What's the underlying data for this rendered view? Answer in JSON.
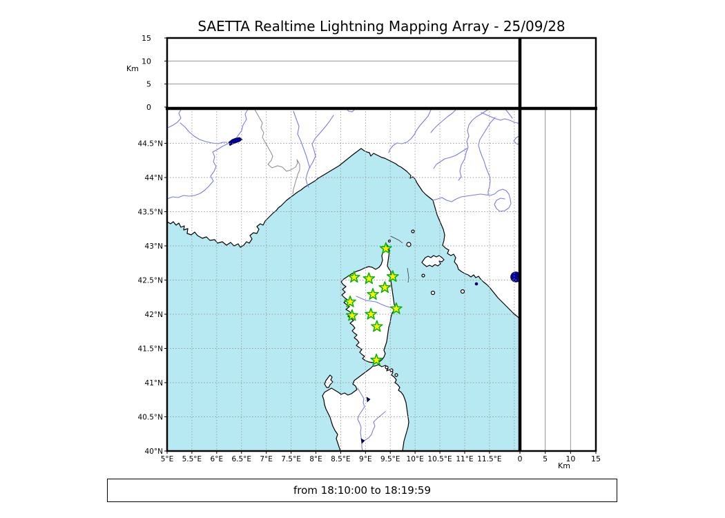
{
  "title": "SAETTA Realtime Lightning Mapping Array - 25/09/28",
  "footer": "from 18:10:00 to 18:19:59",
  "altitude_axes": {
    "unit_label": "Km",
    "ticks": [
      0,
      5,
      10,
      15
    ],
    "max_km": 15,
    "gridline_kms": [
      5,
      10
    ]
  },
  "map_axes": {
    "bounds": {
      "lon_min": 5,
      "lon_max": 12.1,
      "lat_min": 40,
      "lat_max": 45
    },
    "lon_ticks": [
      {
        "value": 5,
        "label": "5°E"
      },
      {
        "value": 5.5,
        "label": "5.5°E"
      },
      {
        "value": 6,
        "label": "6°E"
      },
      {
        "value": 6.5,
        "label": "6.5°E"
      },
      {
        "value": 7,
        "label": "7°E"
      },
      {
        "value": 7.5,
        "label": "7.5°E"
      },
      {
        "value": 8,
        "label": "8°E"
      },
      {
        "value": 8.5,
        "label": "8.5°E"
      },
      {
        "value": 9,
        "label": "9°E"
      },
      {
        "value": 9.5,
        "label": "9.5°E"
      },
      {
        "value": 10,
        "label": "10°E"
      },
      {
        "value": 10.5,
        "label": "10.5°E"
      },
      {
        "value": 11,
        "label": "11°E"
      },
      {
        "value": 11.5,
        "label": "11.5°E"
      }
    ],
    "lon_grid_extra": [
      12
    ],
    "lat_ticks": [
      {
        "value": 44.5,
        "label": "44.5°N"
      },
      {
        "value": 44,
        "label": "44°N"
      },
      {
        "value": 43.5,
        "label": "43.5°N"
      },
      {
        "value": 43,
        "label": "43°N"
      },
      {
        "value": 42.5,
        "label": "42.5°N"
      },
      {
        "value": 42,
        "label": "42°N"
      },
      {
        "value": 41.5,
        "label": "41.5°N"
      },
      {
        "value": 41,
        "label": "41°N"
      },
      {
        "value": 40.5,
        "label": "40.5°N"
      },
      {
        "value": 40,
        "label": "40°N"
      }
    ]
  },
  "stations": [
    {
      "lon": 9.41,
      "lat": 42.96
    },
    {
      "lon": 8.77,
      "lat": 42.54
    },
    {
      "lon": 9.07,
      "lat": 42.52
    },
    {
      "lon": 9.55,
      "lat": 42.55
    },
    {
      "lon": 9.39,
      "lat": 42.39
    },
    {
      "lon": 9.15,
      "lat": 42.29
    },
    {
      "lon": 8.69,
      "lat": 42.18
    },
    {
      "lon": 9.62,
      "lat": 42.08
    },
    {
      "lon": 8.73,
      "lat": 41.98
    },
    {
      "lon": 9.11,
      "lat": 42.0
    },
    {
      "lon": 9.23,
      "lat": 41.82
    },
    {
      "lon": 9.22,
      "lat": 41.33
    }
  ],
  "colors": {
    "sea": "#b7e9f3",
    "land": "#ffffff",
    "river": "#7a7af2",
    "lake": "#000099",
    "border": "#8a8a8a",
    "grid": "#999999",
    "coast": "#000000",
    "star_fill": "#ffee00",
    "star_edge": "#00b400"
  }
}
